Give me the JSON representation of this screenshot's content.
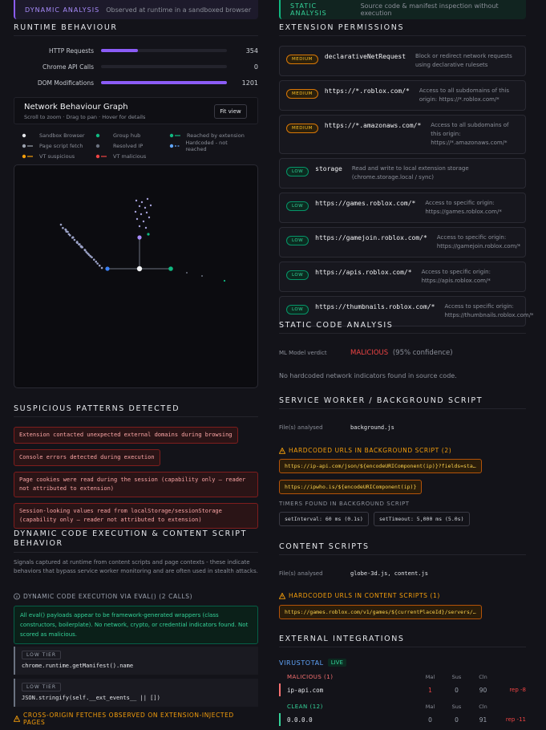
{
  "dynamic_panel": {
    "tab": "DYNAMIC ANALYSIS",
    "tab_note": "Observed at runtime in a sandboxed browser",
    "runtime": {
      "title": "RUNTIME BEHAVIOUR",
      "metrics": [
        {
          "label": "HTTP Requests",
          "value": 354
        },
        {
          "label": "Chrome API Calls",
          "value": 0
        },
        {
          "label": "DOM Modifications",
          "value": 1201
        }
      ]
    },
    "graph": {
      "title": "Network Behaviour Graph",
      "hint": "Scroll to zoom · Drag to pan · Hover for details",
      "button": "Fit view",
      "legend": [
        "Sandbox Browser",
        "Group hub",
        "Reached by extension",
        "Page script fetch",
        "Resolved IP",
        "Hardcoded - not reached",
        "VT suspicious",
        "VT malicious"
      ]
    },
    "suspicious": {
      "title": "SUSPICIOUS PATTERNS DETECTED",
      "items": [
        "Extension contacted unexpected external domains during browsing",
        "Console errors detected during execution",
        "Page cookies were read during the session (capability only – reader not attributed to extension)",
        "Session-looking values read from localStorage/sessionStorage (capability only – reader not attributed to extension)"
      ]
    },
    "dynamic_code": {
      "title": "DYNAMIC CODE EXECUTION & CONTENT SCRIPT BEHAVIOR",
      "description": "Signals captured at runtime from content scripts and page contexts - these indicate behaviors that bypass service worker monitoring and are often used in stealth attacks.",
      "eval_heading": "DYNAMIC CODE EXECUTION VIA EVAL() (2 CALLS)",
      "eval_note": "All eval() payloads appear to be framework-generated wrappers (class constructors, boilerplate). No network, crypto, or credential indicators found. Not scored as malicious.",
      "eval_calls": [
        {
          "tier": "LOW TIER",
          "code": "chrome.runtime.getManifest().name"
        },
        {
          "tier": "LOW TIER",
          "code": "JSON.stringify(self.__ext_events__ || [])"
        }
      ],
      "cross_origin_heading": "CROSS-ORIGIN FETCHES OBSERVED ON EXTENSION-INJECTED PAGES"
    }
  },
  "static_panel": {
    "tab": "STATIC ANALYSIS",
    "tab_note": "Source code & manifest inspection without execution",
    "permissions": {
      "title": "EXTENSION PERMISSIONS",
      "items": [
        {
          "level": "MEDIUM",
          "name": "declarativeNetRequest",
          "description": "Block or redirect network requests using declarative rulesets"
        },
        {
          "level": "MEDIUM",
          "name": "https://*.roblox.com/*",
          "description": "Access to all subdomains of this origin: https://*.roblox.com/*"
        },
        {
          "level": "MEDIUM",
          "name": "https://*.amazonaws.com/*",
          "description": "Access to all subdomains of this origin: https://*.amazonaws.com/*"
        },
        {
          "level": "LOW",
          "name": "storage",
          "description": "Read and write to local extension storage (chrome.storage.local / sync)"
        },
        {
          "level": "LOW",
          "name": "https://games.roblox.com/*",
          "description": "Access to specific origin: https://games.roblox.com/*"
        },
        {
          "level": "LOW",
          "name": "https://gamejoin.roblox.com/*",
          "description": "Access to specific origin: https://gamejoin.roblox.com/*"
        },
        {
          "level": "LOW",
          "name": "https://apis.roblox.com/*",
          "description": "Access to specific origin: https://apis.roblox.com/*"
        },
        {
          "level": "LOW",
          "name": "https://thumbnails.roblox.com/*",
          "description": "Access to specific origin: https://thumbnails.roblox.com/*"
        }
      ]
    },
    "static_code": {
      "title": "STATIC CODE ANALYSIS",
      "verdict_label": "ML Model verdict",
      "verdict": "MALICIOUS",
      "confidence": "(95% confidence)",
      "note": "No hardcoded network indicators found in source code."
    },
    "service_worker": {
      "title": "SERVICE WORKER / BACKGROUND SCRIPT",
      "files_label": "File(s) analysed",
      "files": "background.js",
      "urls_heading": "HARDCODED URLS IN BACKGROUND SCRIPT (2)",
      "urls": [
        "https://ip-api.com/json/${encodeURIComponent(ip)}?fields=sta…",
        "https://ipwho.is/${encodeURIComponent(ip)}"
      ],
      "timers_heading": "TIMERS FOUND IN BACKGROUND SCRIPT",
      "timers": [
        "setInterval: 60 ms (0.1s)",
        "setTimeout: 5,000 ms (5.0s)"
      ]
    },
    "content_scripts": {
      "title": "CONTENT SCRIPTS",
      "files_label": "File(s) analysed",
      "files": "globe-3d.js, content.js",
      "urls_heading": "HARDCODED URLS IN CONTENT SCRIPTS (1)",
      "urls": [
        "https://games.roblox.com/v1/games/${currentPlaceId}/servers/…"
      ]
    },
    "integrations": {
      "title": "EXTERNAL INTEGRATIONS",
      "service": "VIRUSTOTAL",
      "status": "LIVE",
      "groups": [
        {
          "label": "MALICIOUS (1)",
          "columns": [
            "Mal",
            "Sus",
            "Cln"
          ],
          "rows": [
            {
              "host": "ip-api.com",
              "mal": 1,
              "sus": 0,
              "cln": 90,
              "rep": "rep -8"
            }
          ]
        },
        {
          "label": "CLEAN (12)",
          "columns": [
            "Mal",
            "Sus",
            "Cln"
          ],
          "rows": [
            {
              "host": "0.0.0.0",
              "mal": 0,
              "sus": 0,
              "cln": 91,
              "rep": "rep -11"
            }
          ]
        }
      ]
    }
  }
}
